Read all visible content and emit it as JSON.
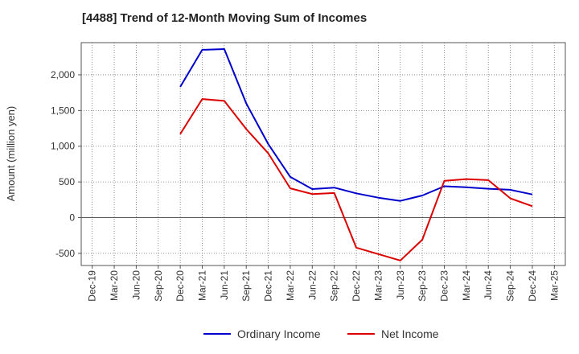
{
  "chart_data": {
    "type": "line",
    "title": "[4488]  Trend of 12-Month Moving Sum of Incomes",
    "ylabel": "Amount (million yen)",
    "xlabel": "",
    "categories": [
      "Dec-19",
      "Mar-20",
      "Jun-20",
      "Sep-20",
      "Dec-20",
      "Mar-21",
      "Jun-21",
      "Sep-21",
      "Dec-21",
      "Mar-22",
      "Jun-22",
      "Sep-22",
      "Dec-22",
      "Mar-23",
      "Jun-23",
      "Sep-23",
      "Dec-23",
      "Mar-24",
      "Jun-24",
      "Sep-24",
      "Dec-24",
      "Mar-25"
    ],
    "ylim": [
      -670,
      2450
    ],
    "yticks": [
      -500,
      0,
      500,
      1000,
      1500,
      2000
    ],
    "ytick_labels": [
      "-500",
      "0",
      "500",
      "1,000",
      "1,500",
      "2,000"
    ],
    "grid": true,
    "legend_position": "bottom",
    "series": [
      {
        "name": "Ordinary Income",
        "color": "#0000cc",
        "values": [
          null,
          null,
          null,
          null,
          1830,
          2350,
          2360,
          1600,
          1030,
          570,
          400,
          420,
          340,
          280,
          235,
          310,
          440,
          425,
          405,
          390,
          325,
          null
        ]
      },
      {
        "name": "Net Income",
        "color": "#dd0000",
        "values": [
          null,
          null,
          null,
          null,
          1170,
          1660,
          1635,
          1240,
          900,
          410,
          330,
          345,
          -420,
          -510,
          -600,
          -310,
          515,
          540,
          525,
          270,
          160,
          null
        ]
      }
    ]
  }
}
